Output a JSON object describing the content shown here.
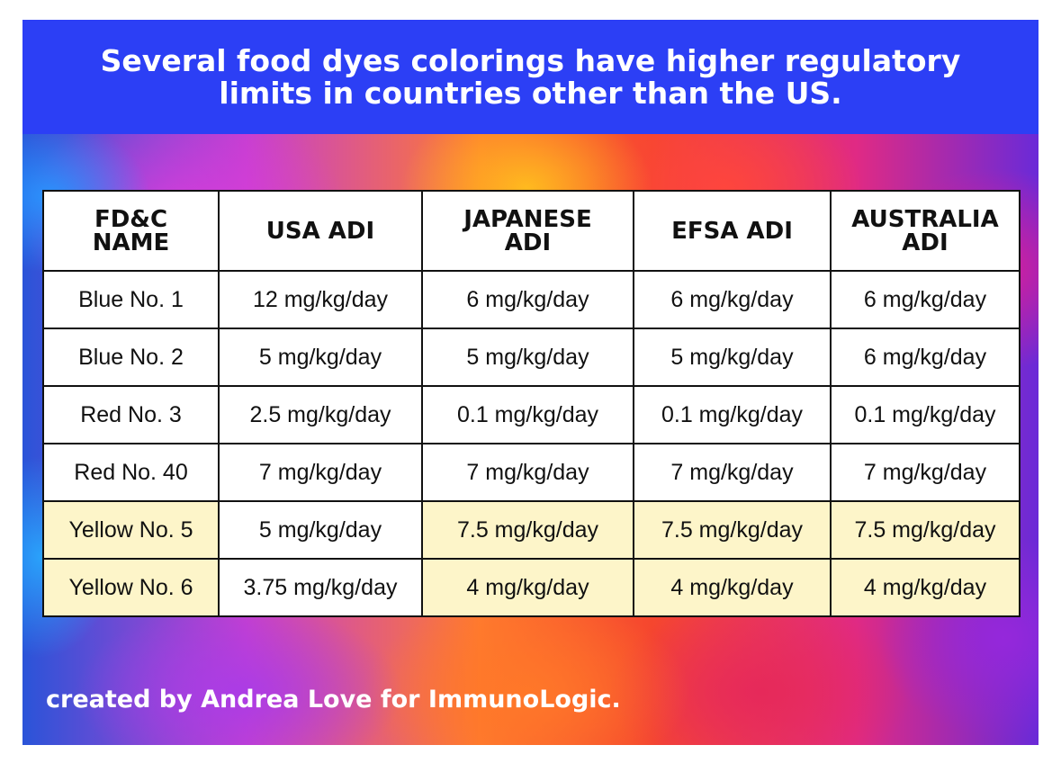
{
  "title": "Several food dyes colorings have higher regulatory limits in countries other than the US.",
  "footer": "created by Andrea Love for ImmunoLogic.",
  "colors": {
    "header_bg": "#2c3ff5",
    "highlight": "#fdf5c9",
    "border": "#111111",
    "text_on_header": "#ffffff"
  },
  "table": {
    "headers": [
      "FD&C NAME",
      "USA ADI",
      "JAPANESE ADI",
      "EFSA ADI",
      "AUSTRALIA ADI"
    ],
    "rows": [
      {
        "cells": [
          "Blue No. 1",
          "12 mg/kg/day",
          "6 mg/kg/day",
          "6 mg/kg/day",
          "6 mg/kg/day"
        ],
        "highlight": [
          false,
          false,
          false,
          false,
          false
        ]
      },
      {
        "cells": [
          "Blue No. 2",
          "5 mg/kg/day",
          "5 mg/kg/day",
          "5 mg/kg/day",
          "6 mg/kg/day"
        ],
        "highlight": [
          false,
          false,
          false,
          false,
          false
        ]
      },
      {
        "cells": [
          "Red No. 3",
          "2.5 mg/kg/day",
          "0.1 mg/kg/day",
          "0.1 mg/kg/day",
          "0.1 mg/kg/day"
        ],
        "highlight": [
          false,
          false,
          false,
          false,
          false
        ]
      },
      {
        "cells": [
          "Red No. 40",
          "7 mg/kg/day",
          "7 mg/kg/day",
          "7 mg/kg/day",
          "7 mg/kg/day"
        ],
        "highlight": [
          false,
          false,
          false,
          false,
          false
        ]
      },
      {
        "cells": [
          "Yellow No. 5",
          "5 mg/kg/day",
          "7.5 mg/kg/day",
          "7.5 mg/kg/day",
          "7.5 mg/kg/day"
        ],
        "highlight": [
          true,
          false,
          true,
          true,
          true
        ]
      },
      {
        "cells": [
          "Yellow No. 6",
          "3.75 mg/kg/day",
          "4 mg/kg/day",
          "4 mg/kg/day",
          "4 mg/kg/day"
        ],
        "highlight": [
          true,
          false,
          true,
          true,
          true
        ]
      }
    ]
  }
}
